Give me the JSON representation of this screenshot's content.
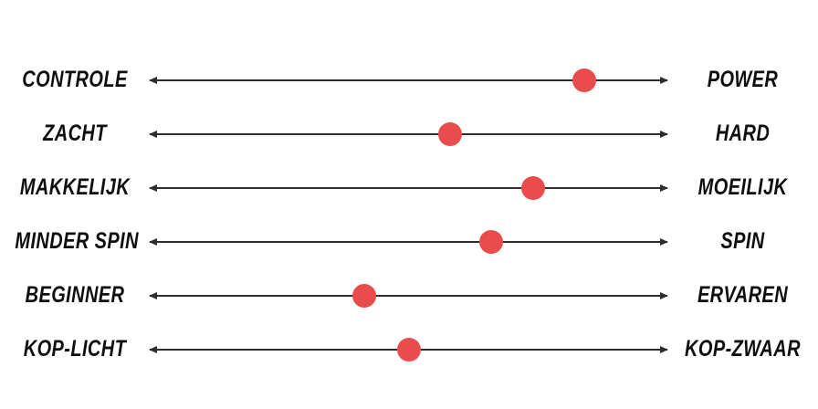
{
  "colors": {
    "background": "#ffffff",
    "line": "#2d2d2d",
    "dot": "#e84c4c",
    "text": "#0f0f0f"
  },
  "rows": [
    {
      "left": "CONTROLE",
      "right": "POWER",
      "value_pct": 84
    },
    {
      "left": "ZACHT",
      "right": "HARD",
      "value_pct": 58
    },
    {
      "left": "MAKKELIJK",
      "right": "MOEILIJK",
      "value_pct": 74
    },
    {
      "left": "MINDER SPIN",
      "right": "SPIN",
      "value_pct": 66
    },
    {
      "left": "BEGINNER",
      "right": "ERVAREN",
      "value_pct": 41.5
    },
    {
      "left": "KOP-LICHT",
      "right": "KOP-ZWAAR",
      "value_pct": 50
    }
  ],
  "chart_data": {
    "type": "scatter",
    "description": "Six bipolar attribute scales; each double-headed axis runs from the left trait (0) to the right trait (100) with a single red marker showing the rating.",
    "legend_position": "none",
    "grid": false,
    "xlim": [
      0,
      100
    ],
    "axes": [
      {
        "left_label": "CONTROLE",
        "right_label": "POWER",
        "marker_position_pct": 84
      },
      {
        "left_label": "ZACHT",
        "right_label": "HARD",
        "marker_position_pct": 58
      },
      {
        "left_label": "MAKKELIJK",
        "right_label": "MOEILIJK",
        "marker_position_pct": 74
      },
      {
        "left_label": "MINDER SPIN",
        "right_label": "SPIN",
        "marker_position_pct": 66
      },
      {
        "left_label": "BEGINNER",
        "right_label": "ERVAREN",
        "marker_position_pct": 41.5
      },
      {
        "left_label": "KOP-LICHT",
        "right_label": "KOP-ZWAAR",
        "marker_position_pct": 50
      }
    ]
  }
}
